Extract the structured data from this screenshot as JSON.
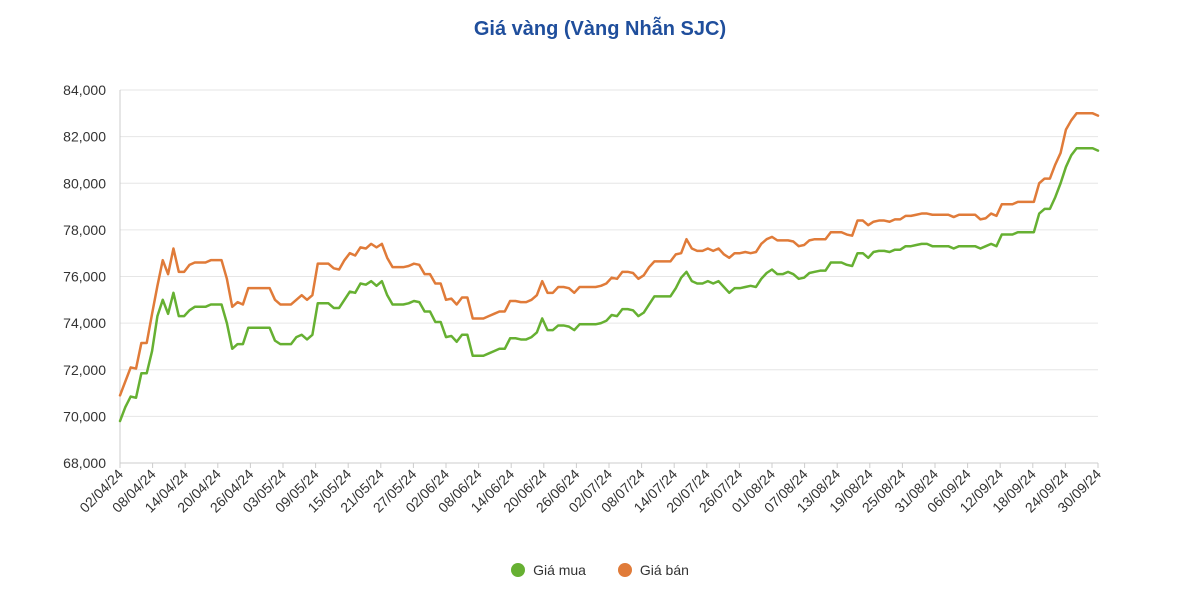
{
  "chart_data": {
    "type": "line",
    "title": "Giá vàng (Vàng Nhẫn SJC)",
    "xlabel": "",
    "ylabel": "",
    "ylim": [
      68000,
      84000
    ],
    "yticks": [
      "68,000",
      "70,000",
      "72,000",
      "74,000",
      "76,000",
      "78,000",
      "80,000",
      "82,000",
      "84,000"
    ],
    "x_tick_labels": [
      "02/04/24",
      "08/04/24",
      "14/04/24",
      "20/04/24",
      "26/04/24",
      "03/05/24",
      "09/05/24",
      "15/05/24",
      "21/05/24",
      "27/05/24",
      "02/06/24",
      "08/06/24",
      "14/06/24",
      "20/06/24",
      "26/06/24",
      "02/07/24",
      "08/07/24",
      "14/07/24",
      "20/07/24",
      "26/07/24",
      "01/08/24",
      "07/08/24",
      "13/08/24",
      "19/08/24",
      "25/08/24",
      "31/08/24",
      "06/09/24",
      "12/09/24",
      "18/09/24",
      "24/09/24",
      "30/09/24"
    ],
    "grid": true,
    "legend_position": "bottom",
    "colors": {
      "title": "#1f4e9c",
      "grid": "#e6e6e6",
      "axis": "#cccccc"
    },
    "series": [
      {
        "name": "Giá mua",
        "color": "#66b032",
        "values": [
          69800,
          70400,
          70850,
          70800,
          71850,
          71850,
          72800,
          74300,
          75000,
          74400,
          75300,
          74300,
          74300,
          74550,
          74700,
          74700,
          74700,
          74800,
          74800,
          74800,
          74000,
          72900,
          73100,
          73100,
          73800,
          73800,
          73800,
          73800,
          73800,
          73250,
          73100,
          73100,
          73100,
          73400,
          73500,
          73300,
          73500,
          74850,
          74850,
          74850,
          74650,
          74650,
          75000,
          75350,
          75300,
          75700,
          75650,
          75800,
          75600,
          75800,
          75200,
          74800,
          74800,
          74800,
          74850,
          74950,
          74900,
          74500,
          74500,
          74050,
          74050,
          73400,
          73450,
          73200,
          73500,
          73500,
          72600,
          72600,
          72600,
          72700,
          72800,
          72900,
          72900,
          73350,
          73350,
          73300,
          73300,
          73400,
          73600,
          74200,
          73700,
          73700,
          73900,
          73900,
          73850,
          73700,
          73950,
          73950,
          73950,
          73950,
          74000,
          74100,
          74350,
          74300,
          74600,
          74600,
          74550,
          74300,
          74450,
          74800,
          75150,
          75150,
          75150,
          75150,
          75500,
          75950,
          76200,
          75800,
          75700,
          75700,
          75800,
          75700,
          75800,
          75550,
          75300,
          75500,
          75500,
          75550,
          75600,
          75550,
          75900,
          76150,
          76300,
          76100,
          76100,
          76200,
          76100,
          75900,
          75950,
          76150,
          76200,
          76250,
          76250,
          76600,
          76600,
          76600,
          76500,
          76450,
          77000,
          77000,
          76800,
          77050,
          77100,
          77100,
          77050,
          77150,
          77150,
          77300,
          77300,
          77350,
          77400,
          77400,
          77300,
          77300,
          77300,
          77300,
          77200,
          77300,
          77300,
          77300,
          77300,
          77200,
          77300,
          77400,
          77300,
          77800,
          77800,
          77800,
          77900,
          77900,
          77900,
          77900,
          78700,
          78900,
          78900,
          79400,
          80000,
          80700,
          81200,
          81500,
          81500,
          81500,
          81500,
          81400
        ]
      },
      {
        "name": "Giá bán",
        "color": "#e07b39",
        "values": [
          70900,
          71500,
          72100,
          72050,
          73150,
          73150,
          74400,
          75600,
          76700,
          76100,
          77200,
          76200,
          76200,
          76500,
          76600,
          76600,
          76600,
          76700,
          76700,
          76700,
          75900,
          74700,
          74900,
          74800,
          75500,
          75500,
          75500,
          75500,
          75500,
          75000,
          74800,
          74800,
          74800,
          75000,
          75200,
          75000,
          75200,
          76550,
          76550,
          76550,
          76350,
          76300,
          76700,
          77000,
          76900,
          77250,
          77200,
          77400,
          77250,
          77400,
          76800,
          76400,
          76400,
          76400,
          76450,
          76550,
          76500,
          76100,
          76100,
          75700,
          75700,
          75000,
          75050,
          74800,
          75100,
          75100,
          74200,
          74200,
          74200,
          74300,
          74400,
          74500,
          74500,
          74950,
          74950,
          74900,
          74900,
          75000,
          75200,
          75800,
          75300,
          75300,
          75550,
          75550,
          75500,
          75300,
          75550,
          75550,
          75550,
          75550,
          75600,
          75700,
          75950,
          75900,
          76200,
          76200,
          76150,
          75900,
          76050,
          76400,
          76650,
          76650,
          76650,
          76650,
          76950,
          77000,
          77600,
          77200,
          77100,
          77100,
          77200,
          77100,
          77200,
          76950,
          76800,
          77000,
          77000,
          77050,
          77000,
          77050,
          77400,
          77600,
          77700,
          77550,
          77550,
          77550,
          77500,
          77300,
          77350,
          77550,
          77600,
          77600,
          77600,
          77900,
          77900,
          77900,
          77800,
          77750,
          78400,
          78400,
          78200,
          78350,
          78400,
          78400,
          78350,
          78450,
          78450,
          78600,
          78600,
          78650,
          78700,
          78700,
          78650,
          78650,
          78650,
          78650,
          78550,
          78650,
          78650,
          78650,
          78650,
          78450,
          78500,
          78700,
          78600,
          79100,
          79100,
          79100,
          79200,
          79200,
          79200,
          79200,
          80000,
          80200,
          80200,
          80800,
          81300,
          82300,
          82700,
          83000,
          83000,
          83000,
          83000,
          82900
        ]
      }
    ]
  }
}
